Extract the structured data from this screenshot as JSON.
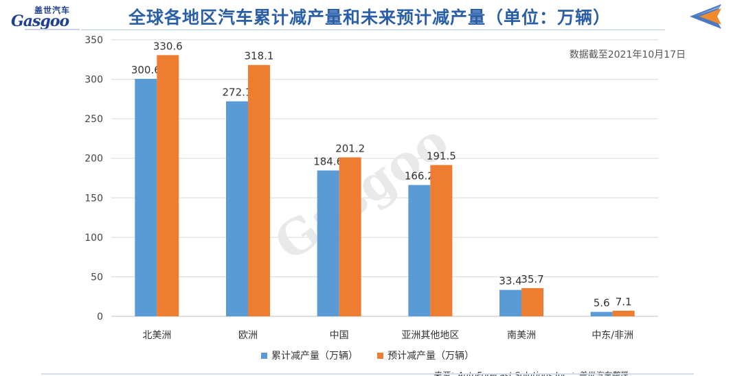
{
  "header": {
    "logo_cn": "盖世汽车",
    "logo_en": "Gasgoo",
    "title": "全球各地区汽车累计减产量和未来预计减产量（单位：万辆）"
  },
  "colors": {
    "series1": "#5b9bd5",
    "series2": "#ed7d31",
    "title": "#2a5fa8"
  },
  "footer": {
    "source": "来源：AutoForecast Solutions Inc.；盖世汽车整理"
  },
  "chart_data": {
    "type": "bar",
    "title": "全球各地区汽车累计减产量和未来预计减产量（单位：万辆）",
    "annotation": "数据截至2021年10月17日",
    "categories": [
      "北美洲",
      "欧洲",
      "中国",
      "亚洲其他地区",
      "南美洲",
      "中东/非洲"
    ],
    "series": [
      {
        "name": "累计减产量（万辆）",
        "values": [
          300.6,
          272.1,
          184.6,
          166.2,
          33.4,
          5.6
        ]
      },
      {
        "name": "预计减产量（万辆）",
        "values": [
          330.6,
          318.1,
          201.2,
          191.5,
          35.7,
          7.1
        ]
      }
    ],
    "yticks": [
      0,
      50,
      100,
      150,
      200,
      250,
      300,
      350
    ],
    "ylim": [
      0,
      350
    ],
    "grid": true,
    "legend": "bottom"
  }
}
